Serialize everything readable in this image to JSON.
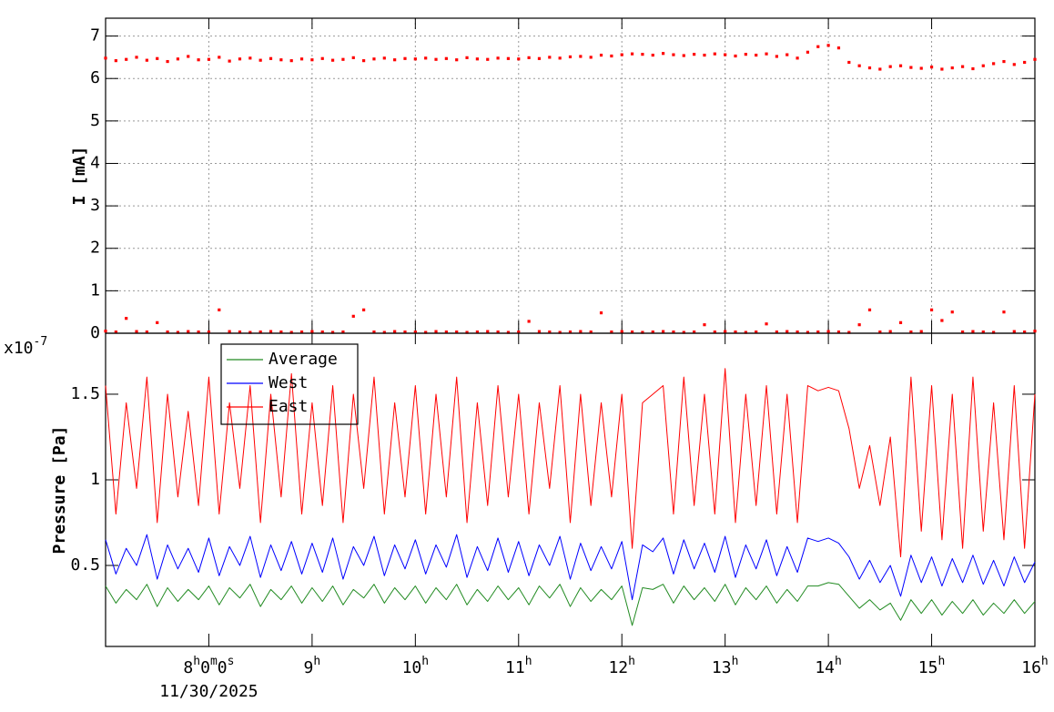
{
  "chart_data": [
    {
      "type": "scatter",
      "ylabel": "I [mA]",
      "x": [
        7.0,
        7.1,
        7.2,
        7.3,
        7.4,
        7.5,
        7.6,
        7.7,
        7.8,
        7.9,
        8.0,
        8.1,
        8.2,
        8.3,
        8.4,
        8.5,
        8.6,
        8.7,
        8.8,
        8.9,
        9.0,
        9.1,
        9.2,
        9.3,
        9.4,
        9.5,
        9.6,
        9.7,
        9.8,
        9.9,
        10.0,
        10.1,
        10.2,
        10.3,
        10.4,
        10.5,
        10.6,
        10.7,
        10.8,
        10.9,
        11.0,
        11.1,
        11.2,
        11.3,
        11.4,
        11.5,
        11.6,
        11.7,
        11.8,
        11.9,
        12.0,
        12.1,
        12.2,
        12.3,
        12.4,
        12.5,
        12.6,
        12.7,
        12.8,
        12.9,
        13.0,
        13.1,
        13.2,
        13.3,
        13.4,
        13.5,
        13.6,
        13.7,
        13.8,
        13.9,
        14.0,
        14.1,
        14.2,
        14.3,
        14.4,
        14.5,
        14.6,
        14.7,
        14.8,
        14.9,
        15.0,
        15.1,
        15.2,
        15.3,
        15.4,
        15.5,
        15.6,
        15.7,
        15.8,
        15.9,
        16.0
      ],
      "series": [
        {
          "color": "#ff0000",
          "values": [
            6.48,
            6.42,
            6.45,
            6.5,
            6.43,
            6.47,
            6.4,
            6.46,
            6.52,
            6.44,
            6.45,
            6.5,
            6.41,
            6.46,
            6.48,
            6.43,
            6.47,
            6.44,
            6.42,
            6.46,
            6.44,
            6.47,
            6.43,
            6.45,
            6.49,
            6.42,
            6.46,
            6.48,
            6.44,
            6.47,
            6.46,
            6.48,
            6.45,
            6.47,
            6.44,
            6.49,
            6.46,
            6.45,
            6.48,
            6.47,
            6.46,
            6.49,
            6.47,
            6.5,
            6.48,
            6.51,
            6.52,
            6.5,
            6.55,
            6.53,
            6.56,
            6.58,
            6.57,
            6.55,
            6.59,
            6.56,
            6.54,
            6.57,
            6.55,
            6.58,
            6.56,
            6.53,
            6.57,
            6.55,
            6.58,
            6.52,
            6.56,
            6.48,
            6.62,
            6.75,
            6.78,
            6.72,
            6.38,
            6.3,
            6.25,
            6.22,
            6.28,
            6.3,
            6.26,
            6.24,
            6.27,
            6.22,
            6.25,
            6.28,
            6.23,
            6.3,
            6.35,
            6.4,
            6.33,
            6.38,
            6.45
          ]
        },
        {
          "color": "#ff0000",
          "values": [
            0.05,
            0.03,
            0.35,
            0.04,
            0.03,
            0.25,
            0.03,
            0.02,
            0.04,
            0.03,
            0.03,
            0.55,
            0.04,
            0.03,
            0.02,
            0.03,
            0.04,
            0.03,
            0.02,
            0.03,
            0.04,
            0.03,
            0.02,
            0.03,
            0.4,
            0.55,
            0.03,
            0.02,
            0.04,
            0.03,
            0.03,
            0.02,
            0.04,
            0.03,
            0.03,
            0.02,
            0.03,
            0.04,
            0.03,
            0.02,
            0.03,
            0.28,
            0.04,
            0.03,
            0.02,
            0.03,
            0.04,
            0.03,
            0.48,
            0.03,
            0.04,
            0.03,
            0.02,
            0.03,
            0.04,
            0.03,
            0.02,
            0.03,
            0.2,
            0.03,
            0.04,
            0.03,
            0.02,
            0.03,
            0.22,
            0.03,
            0.04,
            0.03,
            0.02,
            0.03,
            0.04,
            0.03,
            0.02,
            0.2,
            0.55,
            0.03,
            0.04,
            0.25,
            0.03,
            0.04,
            0.55,
            0.3,
            0.5,
            0.03,
            0.04,
            0.03,
            0.02,
            0.5,
            0.04,
            0.03,
            0.05
          ]
        }
      ],
      "xlim": [
        7,
        16
      ],
      "xticks": [
        8,
        9,
        10,
        11,
        12,
        13,
        14,
        15,
        16
      ],
      "ylim": [
        0,
        7.42
      ],
      "yticks": [
        0,
        1,
        2,
        3,
        4,
        5,
        6,
        7
      ],
      "grid": true
    },
    {
      "type": "line",
      "ylabel": "Pressure [Pa]",
      "y_multiplier": "x10-7",
      "x_date": "11/30/2025",
      "x": [
        7.0,
        7.1,
        7.2,
        7.3,
        7.4,
        7.5,
        7.6,
        7.7,
        7.8,
        7.9,
        8.0,
        8.1,
        8.2,
        8.3,
        8.4,
        8.5,
        8.6,
        8.7,
        8.8,
        8.9,
        9.0,
        9.1,
        9.2,
        9.3,
        9.4,
        9.5,
        9.6,
        9.7,
        9.8,
        9.9,
        10.0,
        10.1,
        10.2,
        10.3,
        10.4,
        10.5,
        10.6,
        10.7,
        10.8,
        10.9,
        11.0,
        11.1,
        11.2,
        11.3,
        11.4,
        11.5,
        11.6,
        11.7,
        11.8,
        11.9,
        12.0,
        12.1,
        12.2,
        12.3,
        12.4,
        12.5,
        12.6,
        12.7,
        12.8,
        12.9,
        13.0,
        13.1,
        13.2,
        13.3,
        13.4,
        13.5,
        13.6,
        13.7,
        13.8,
        13.9,
        14.0,
        14.1,
        14.2,
        14.3,
        14.4,
        14.5,
        14.6,
        14.7,
        14.8,
        14.9,
        15.0,
        15.1,
        15.2,
        15.3,
        15.4,
        15.5,
        15.6,
        15.7,
        15.8,
        15.9,
        16.0
      ],
      "series": [
        {
          "name": "Average",
          "color": "#228b22",
          "values": [
            0.38,
            0.28,
            0.36,
            0.3,
            0.39,
            0.26,
            0.37,
            0.29,
            0.36,
            0.3,
            0.38,
            0.27,
            0.37,
            0.31,
            0.39,
            0.26,
            0.36,
            0.3,
            0.38,
            0.28,
            0.37,
            0.29,
            0.38,
            0.27,
            0.36,
            0.31,
            0.39,
            0.28,
            0.37,
            0.3,
            0.38,
            0.28,
            0.37,
            0.3,
            0.39,
            0.27,
            0.36,
            0.29,
            0.38,
            0.3,
            0.37,
            0.27,
            0.38,
            0.31,
            0.39,
            0.26,
            0.37,
            0.29,
            0.36,
            0.3,
            0.38,
            0.15,
            0.37,
            0.36,
            0.39,
            0.28,
            0.38,
            0.3,
            0.37,
            0.29,
            0.39,
            0.27,
            0.37,
            0.3,
            0.38,
            0.28,
            0.36,
            0.29,
            0.38,
            0.38,
            0.4,
            0.39,
            0.32,
            0.25,
            0.3,
            0.24,
            0.28,
            0.18,
            0.3,
            0.22,
            0.3,
            0.21,
            0.29,
            0.22,
            0.3,
            0.21,
            0.28,
            0.22,
            0.3,
            0.22,
            0.29
          ]
        },
        {
          "name": "West",
          "color": "#0000ff",
          "values": [
            0.65,
            0.45,
            0.6,
            0.5,
            0.68,
            0.42,
            0.62,
            0.48,
            0.6,
            0.46,
            0.66,
            0.44,
            0.61,
            0.5,
            0.67,
            0.43,
            0.62,
            0.47,
            0.64,
            0.45,
            0.63,
            0.46,
            0.66,
            0.42,
            0.61,
            0.5,
            0.67,
            0.44,
            0.62,
            0.48,
            0.65,
            0.45,
            0.62,
            0.49,
            0.68,
            0.43,
            0.61,
            0.47,
            0.66,
            0.46,
            0.64,
            0.44,
            0.62,
            0.5,
            0.67,
            0.42,
            0.63,
            0.47,
            0.61,
            0.48,
            0.64,
            0.3,
            0.62,
            0.58,
            0.66,
            0.45,
            0.65,
            0.48,
            0.63,
            0.46,
            0.67,
            0.43,
            0.62,
            0.48,
            0.65,
            0.44,
            0.61,
            0.46,
            0.66,
            0.64,
            0.66,
            0.63,
            0.55,
            0.42,
            0.53,
            0.4,
            0.5,
            0.32,
            0.56,
            0.4,
            0.55,
            0.38,
            0.54,
            0.4,
            0.56,
            0.39,
            0.53,
            0.38,
            0.55,
            0.4,
            0.52
          ]
        },
        {
          "name": "East",
          "color": "#ff0000",
          "values": [
            1.55,
            0.8,
            1.45,
            0.95,
            1.6,
            0.75,
            1.5,
            0.9,
            1.4,
            0.85,
            1.6,
            0.8,
            1.45,
            0.95,
            1.55,
            0.75,
            1.5,
            0.9,
            1.62,
            0.8,
            1.45,
            0.85,
            1.55,
            0.75,
            1.5,
            0.95,
            1.6,
            0.8,
            1.45,
            0.9,
            1.55,
            0.8,
            1.5,
            0.9,
            1.6,
            0.75,
            1.45,
            0.85,
            1.55,
            0.9,
            1.5,
            0.8,
            1.45,
            0.95,
            1.55,
            0.75,
            1.5,
            0.85,
            1.45,
            0.9,
            1.5,
            0.6,
            1.45,
            1.5,
            1.55,
            0.8,
            1.6,
            0.85,
            1.5,
            0.8,
            1.65,
            0.75,
            1.5,
            0.85,
            1.55,
            0.8,
            1.5,
            0.75,
            1.55,
            1.52,
            1.54,
            1.52,
            1.3,
            0.95,
            1.2,
            0.85,
            1.25,
            0.55,
            1.6,
            0.7,
            1.55,
            0.65,
            1.5,
            0.6,
            1.6,
            0.7,
            1.45,
            0.65,
            1.55,
            0.6,
            1.5
          ]
        }
      ],
      "xlim": [
        7,
        16
      ],
      "xticks": [
        {
          "value": 8,
          "label": "8h0m0s"
        },
        {
          "value": 9,
          "label": "9h"
        },
        {
          "value": 10,
          "label": "10h"
        },
        {
          "value": 11,
          "label": "11h"
        },
        {
          "value": 12,
          "label": "12h"
        },
        {
          "value": 13,
          "label": "13h"
        },
        {
          "value": 14,
          "label": "14h"
        },
        {
          "value": 15,
          "label": "15h"
        },
        {
          "value": 16,
          "label": "16h"
        }
      ],
      "ylim": [
        0.027,
        1.856
      ],
      "yticks": [
        0.5,
        1,
        1.5
      ],
      "grid": false,
      "legend": "upper left"
    }
  ]
}
